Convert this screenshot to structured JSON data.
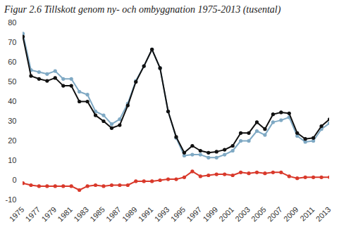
{
  "chart_data": {
    "type": "line",
    "title": "Figur 2.6 Tillskott genom ny- och ombyggnation 1975-2013 (tusental)",
    "x": [
      1975,
      1976,
      1977,
      1978,
      1979,
      1980,
      1981,
      1982,
      1983,
      1984,
      1985,
      1986,
      1987,
      1988,
      1989,
      1990,
      1991,
      1992,
      1993,
      1994,
      1995,
      1996,
      1997,
      1998,
      1999,
      2000,
      2001,
      2002,
      2003,
      2004,
      2005,
      2006,
      2007,
      2008,
      2009,
      2010,
      2011,
      2012,
      2013
    ],
    "series": [
      {
        "color": "#7fa9c4",
        "marker": "circle",
        "values": [
          74.5,
          56,
          55,
          54,
          55.5,
          51.5,
          51.5,
          45,
          43.5,
          35,
          33,
          28.5,
          31,
          39,
          50.5,
          58,
          66.5,
          57,
          35,
          21.5,
          12.5,
          13,
          13,
          11.5,
          11.5,
          13,
          15,
          20,
          20,
          25,
          23,
          29.5,
          30.5,
          32,
          22.5,
          19.5,
          20,
          26,
          29
        ]
      },
      {
        "color": "#111111",
        "marker": "circle",
        "values": [
          73,
          53,
          51.5,
          50.5,
          52,
          48,
          48,
          40,
          40,
          33,
          30,
          26.5,
          28,
          38,
          50,
          58,
          66.5,
          57,
          35,
          22,
          14,
          17.5,
          15,
          14,
          14.5,
          15.5,
          17.5,
          24,
          24,
          29.5,
          26,
          33.5,
          34.5,
          34,
          24,
          21,
          21.5,
          27.5,
          31
        ]
      },
      {
        "color": "#d9392b",
        "marker": "circle",
        "values": [
          -1.5,
          -2.5,
          -3,
          -3,
          -3,
          -3,
          -3,
          -5,
          -3,
          -2.5,
          -3,
          -2.5,
          -2.5,
          -2.5,
          -0.5,
          -0.5,
          -0.5,
          0,
          0.5,
          0.5,
          1.5,
          4.5,
          2,
          2.5,
          3,
          3,
          2.5,
          4,
          3.5,
          4,
          3.5,
          4,
          4,
          2,
          1,
          1.5,
          1.5,
          1.5,
          1.5
        ]
      }
    ],
    "xlim": [
      1975,
      2013
    ],
    "xticks": [
      1975,
      1977,
      1979,
      1981,
      1983,
      1985,
      1987,
      1989,
      1991,
      1993,
      1995,
      1997,
      1999,
      2001,
      2003,
      2005,
      2007,
      2009,
      2011,
      2013
    ],
    "ylim": [
      -10,
      80
    ],
    "yticks": [
      -10,
      0,
      10,
      20,
      30,
      40,
      50,
      60,
      70,
      80
    ],
    "grid": false
  }
}
